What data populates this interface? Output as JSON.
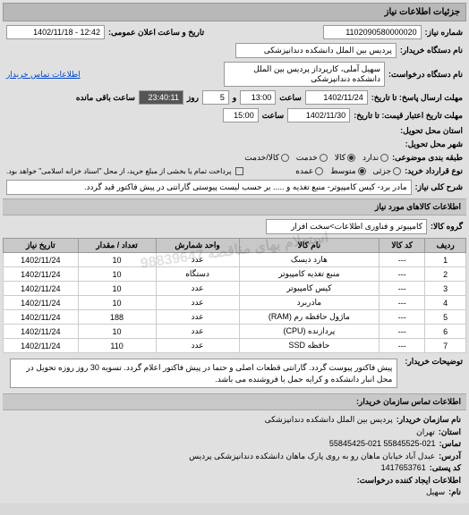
{
  "header": {
    "title": "جزئیات اطلاعات نیاز"
  },
  "top": {
    "number_label": "شماره نیاز:",
    "number_value": "1102090580000020",
    "datetime_label": "تاریخ و ساعت اعلان عمومی:",
    "datetime_value": "12:42 - 1402/11/18",
    "buyer_label": "نام دستگاه خریدار:",
    "buyer_value": "پردیس بین الملل دانشکده دندانپزشکی",
    "requester_label": "نام دستگاه درخواست:",
    "requester_value": "سهیل آملی، کارپرداز پردیس بین الملل دانشکده دندانپزشکی",
    "contact_link": "اطلاعات تماس خریدار"
  },
  "deadlines": {
    "send_label": "مهلت ارسال پاسخ: تا تاریخ:",
    "send_date": "1402/11/24",
    "send_time_label": "ساعت",
    "send_time": "13:00",
    "days_label": "و",
    "days_value": "5",
    "days_suffix": "روز",
    "remain_time": "23:40:11",
    "remain_suffix": "ساعت باقی مانده",
    "validity_label": "مهلت تاریخ اعتبار قیمت: تا تاریخ:",
    "validity_date": "1402/11/30",
    "validity_time_label": "ساعت",
    "validity_time": "15:00"
  },
  "delivery": {
    "province_label": "استان محل تحویل:",
    "city_label": "شهر محل تحویل:"
  },
  "packaging": {
    "label": "طبقه بندی موضوعی:",
    "opt_na": "ندارد",
    "opt_kala": "کالا",
    "opt_service": "خدمت",
    "opt_both": "کالا/خدمت"
  },
  "purchase": {
    "label": "نوع قرارداد خرید:",
    "opt_low": "جزئی",
    "opt_med": "متوسط",
    "opt_high": "عمده",
    "note": "پرداخت تمام یا بخشی از مبلغ خرید، از محل \"اسناد خزانه اسلامی\" خواهد بود.",
    "checkbox": false
  },
  "need": {
    "label": "شرح کلی نیاز:",
    "text": "مادر برد- کیس کامپیوتر- منبع تغذیه و ..... بر حسب لیست پیوستی گارانتی در پیش فاکتور قید گردد."
  },
  "goods": {
    "header": "اطلاعات کالاهای مورد نیاز",
    "group_label": "گروه کالا:",
    "group_value": "کامپیوتر و فناوری اطلاعات>سخت افزار"
  },
  "table": {
    "headers": [
      "ردیف",
      "کد کالا",
      "نام کالا",
      "واحد شمارش",
      "تعداد / مقدار",
      "تاریخ نیاز"
    ],
    "rows": [
      [
        "1",
        "---",
        "هارد دیسک",
        "عدد",
        "10",
        "1402/11/24"
      ],
      [
        "2",
        "---",
        "منبع تغذیه کامپیوتر",
        "دستگاه",
        "10",
        "1402/11/24"
      ],
      [
        "3",
        "---",
        "کیس کامپیوتر",
        "عدد",
        "10",
        "1402/11/24"
      ],
      [
        "4",
        "---",
        "مادربرد",
        "عدد",
        "10",
        "1402/11/24"
      ],
      [
        "5",
        "---",
        "ماژول حافظه رم (RAM)",
        "عدد",
        "188",
        "1402/11/24"
      ],
      [
        "6",
        "---",
        "پردازنده (CPU)",
        "عدد",
        "10",
        "1402/11/24"
      ],
      [
        "7",
        "---",
        "حافظه SSD",
        "عدد",
        "110",
        "1402/11/24"
      ]
    ]
  },
  "explanation": {
    "label": "توضیحات خریدار:",
    "text": "پیش فاکتور پیوست گردد. گارانتی قطعات اصلی و حتما در پیش فاکتور اعلام گردد. تسویه 30 روز روزه تحویل در محل انبار دانشکده و کرایه حمل با فروشنده می باشد."
  },
  "contact": {
    "header": "اطلاعات تماس سازمان خریدار:",
    "org_label": "نام سازمان خریدار:",
    "org_value": "پردیس بین الملل دانشکده دندانپزشکی",
    "province_label": "استان:",
    "province_value": "تهران",
    "phones_label": "تماس:",
    "phones_value": "55845525-021 55845425-021",
    "address_label": "آدرس:",
    "address_value": "عبدل آباد خیابان ماهان رو به روی پارک ماهان دانشکده دندانپزشکی پردیس",
    "postal_label": "کد پستی:",
    "postal_value": "1417653761",
    "creator_label": "اطلاعات ایجاد کننده درخواست:",
    "name_label": "نام:",
    "name_value": "سهیل"
  },
  "watermark": "استعلام بهای مناقصه 98839647"
}
